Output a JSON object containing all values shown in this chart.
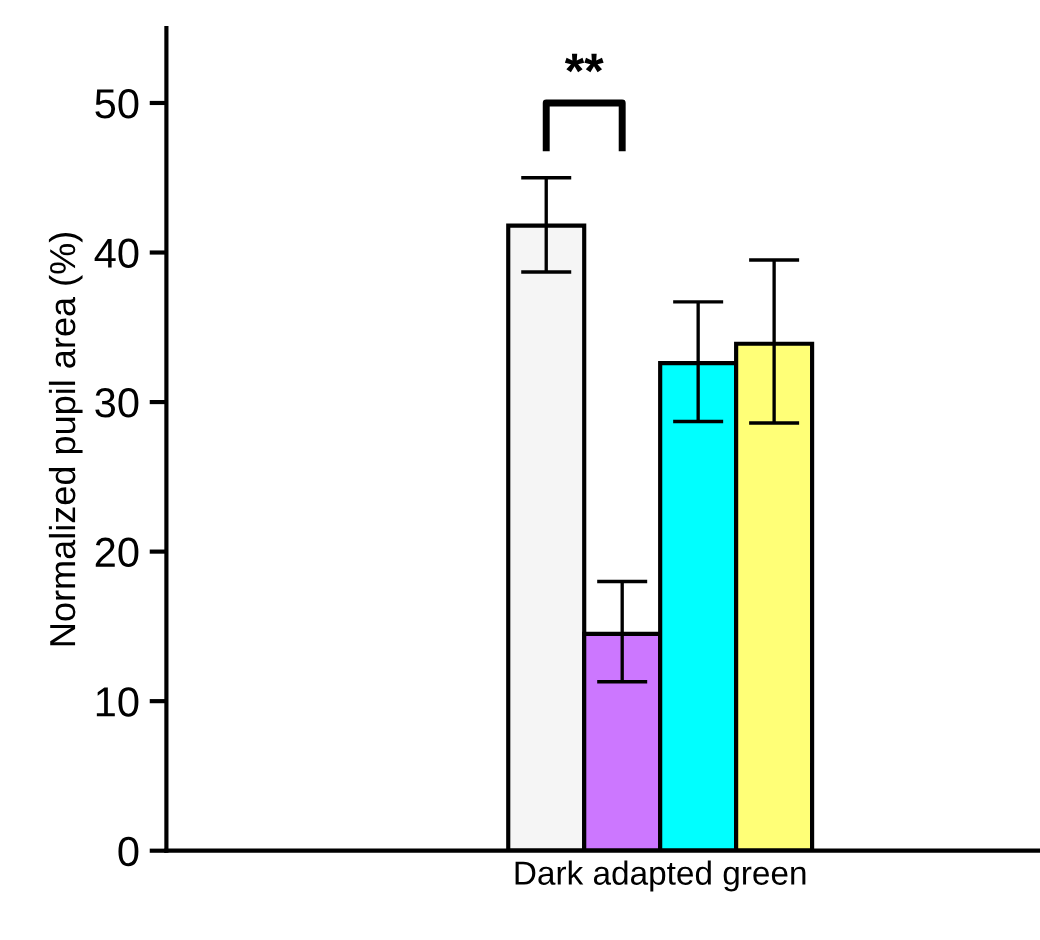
{
  "chart_data": {
    "type": "bar",
    "ylabel": "Normalized pupil area (%)",
    "categories": [
      "Dark adapted green"
    ],
    "series": [
      {
        "color": "#f5f5f5",
        "values": [
          41.8
        ],
        "errors": [
          [
            38.7,
            45.0
          ]
        ]
      },
      {
        "color": "#cc77ff",
        "values": [
          14.5
        ],
        "errors": [
          [
            11.3,
            18.0
          ]
        ]
      },
      {
        "color": "#00ffff",
        "values": [
          32.6
        ],
        "errors": [
          [
            28.7,
            36.7
          ]
        ]
      },
      {
        "color": "#ffff77",
        "values": [
          33.9
        ],
        "errors": [
          [
            28.6,
            39.5
          ]
        ]
      }
    ],
    "ylim": [
      0,
      55
    ],
    "yticks": [
      0,
      10,
      20,
      30,
      40,
      50
    ],
    "annotations": [
      "**"
    ],
    "grid": false,
    "legend": false
  }
}
